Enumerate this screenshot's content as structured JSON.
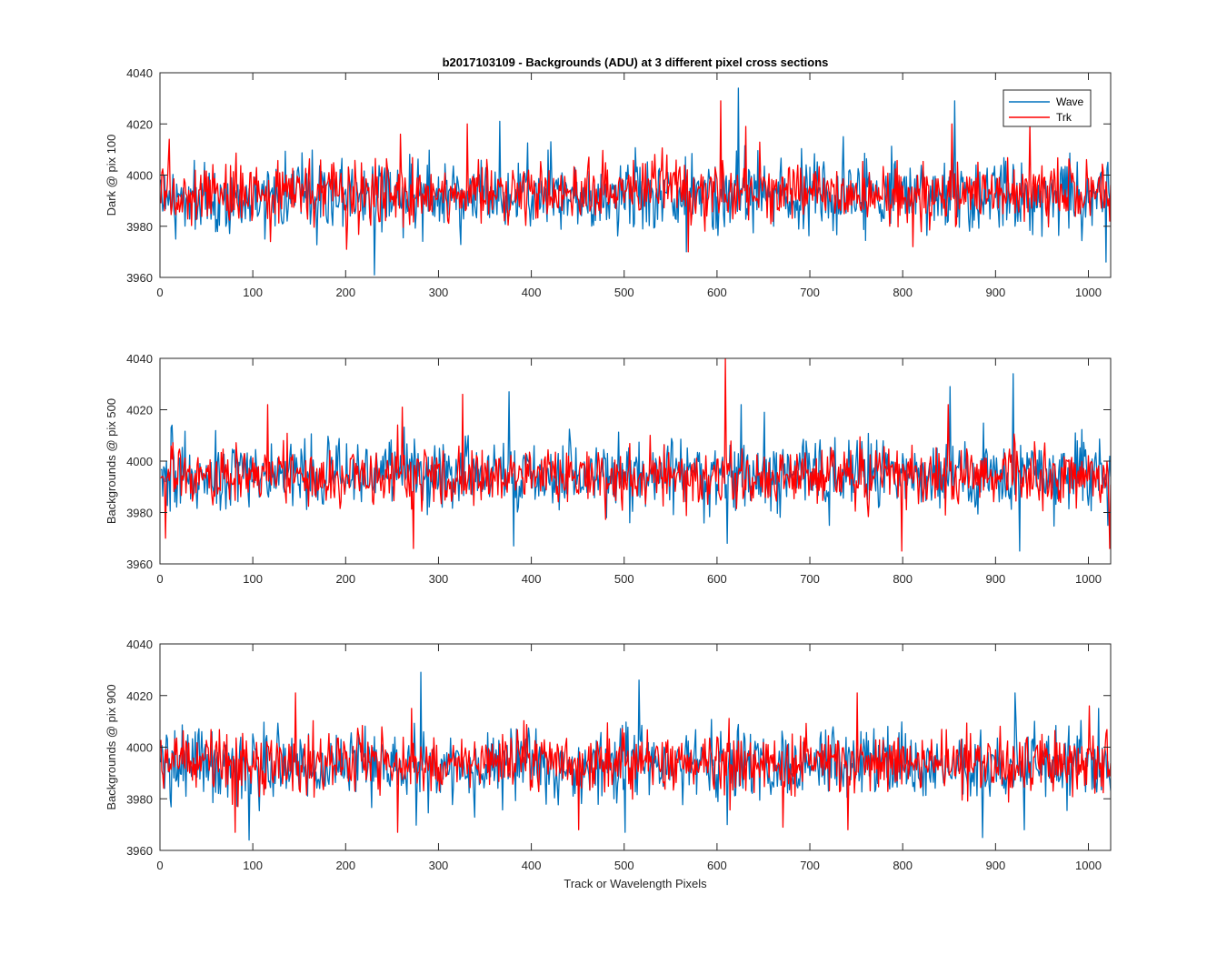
{
  "chart_data": {
    "type": "line",
    "title": "b2017103109 - Backgrounds (ADU) at 3 different pixel cross sections",
    "xlabel": "Track or Wavelength Pixels",
    "xlim": [
      0,
      1024
    ],
    "x_ticks": [
      "0",
      "100",
      "200",
      "300",
      "400",
      "500",
      "600",
      "700",
      "800",
      "900",
      "1000"
    ],
    "legend": {
      "placement": "top-right",
      "entries": [
        "Wave",
        "Trk"
      ]
    },
    "series_colors": {
      "Wave": "#0072BD",
      "Trk": "#FF0000"
    },
    "num_points": 1024,
    "panels": [
      {
        "ylabel": "Dark @ pix 100",
        "ylim": [
          3960,
          4040
        ],
        "y_ticks": [
          "3960",
          "3980",
          "4000",
          "4020",
          "4040"
        ],
        "series": [
          {
            "name": "Wave",
            "mean": 3992,
            "std": 7,
            "spikes": [
              [
                16,
                3975
              ],
              [
                112,
                3975
              ],
              [
                230,
                3961
              ],
              [
                300,
                3982
              ],
              [
                365,
                4021
              ],
              [
                420,
                4013
              ],
              [
                566,
                3970
              ],
              [
                622,
                4034
              ],
              [
                660,
                3980
              ],
              [
                735,
                4015
              ],
              [
                855,
                4029
              ],
              [
                920,
                3980
              ],
              [
                1018,
                3966
              ],
              [
                1020,
                4005
              ]
            ]
          },
          {
            "name": "Trk",
            "mean": 3993,
            "std": 6,
            "spikes": [
              [
                9,
                4014
              ],
              [
                118,
                3974
              ],
              [
                200,
                3971
              ],
              [
                258,
                4016
              ],
              [
                330,
                4020
              ],
              [
                568,
                3970
              ],
              [
                603,
                4029
              ],
              [
                630,
                4019
              ],
              [
                810,
                3972
              ],
              [
                852,
                4020
              ],
              [
                936,
                4020
              ],
              [
                1022,
                3982
              ]
            ]
          }
        ]
      },
      {
        "ylabel": "Backgrounds @ pix 500",
        "ylim": [
          3960,
          4040
        ],
        "y_ticks": [
          "3960",
          "3980",
          "4000",
          "4020",
          "4040"
        ],
        "series": [
          {
            "name": "Wave",
            "mean": 3995,
            "std": 7,
            "spikes": [
              [
                12,
                4014
              ],
              [
                375,
                4027
              ],
              [
                380,
                3967
              ],
              [
                610,
                3968
              ],
              [
                625,
                4022
              ],
              [
                650,
                4019
              ],
              [
                720,
                3975
              ],
              [
                850,
                4029
              ],
              [
                918,
                4034
              ],
              [
                925,
                3965
              ],
              [
                1020,
                3975
              ]
            ]
          },
          {
            "name": "Trk",
            "mean": 3994,
            "std": 6,
            "spikes": [
              [
                5,
                3970
              ],
              [
                115,
                4022
              ],
              [
                260,
                4021
              ],
              [
                272,
                3966
              ],
              [
                325,
                4026
              ],
              [
                608,
                4040
              ],
              [
                798,
                3965
              ],
              [
                848,
                4022
              ],
              [
                1022,
                3966
              ]
            ]
          }
        ]
      },
      {
        "ylabel": "Backgrounds @ pix 900",
        "ylim": [
          3960,
          4040
        ],
        "y_ticks": [
          "3960",
          "3980",
          "4000",
          "4020",
          "4040"
        ],
        "series": [
          {
            "name": "Wave",
            "mean": 3993,
            "std": 7,
            "spikes": [
              [
                95,
                3964
              ],
              [
                280,
                4029
              ],
              [
                515,
                4026
              ],
              [
                500,
                3967
              ],
              [
                610,
                3970
              ],
              [
                885,
                3965
              ],
              [
                920,
                4021
              ],
              [
                930,
                3968
              ],
              [
                1010,
                4015
              ]
            ]
          },
          {
            "name": "Trk",
            "mean": 3994,
            "std": 6,
            "spikes": [
              [
                80,
                3967
              ],
              [
                145,
                4021
              ],
              [
                255,
                3967
              ],
              [
                270,
                4015
              ],
              [
                450,
                3968
              ],
              [
                670,
                3969
              ],
              [
                740,
                3968
              ],
              [
                750,
                4021
              ],
              [
                1000,
                4016
              ]
            ]
          }
        ]
      }
    ]
  }
}
